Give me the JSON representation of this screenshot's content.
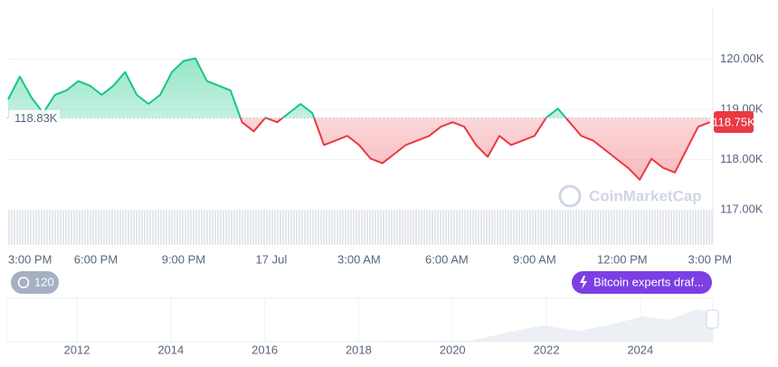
{
  "chart_data": {
    "type": "line",
    "x": [
      0,
      0.4,
      0.8,
      1.2,
      1.6,
      2,
      2.4,
      2.8,
      3.2,
      3.6,
      4,
      4.4,
      4.8,
      5.2,
      5.6,
      6,
      6.4,
      6.8,
      7.2,
      7.6,
      8,
      8.4,
      8.8,
      9.2,
      9.6,
      10,
      10.4,
      10.8,
      11.2,
      11.6,
      12,
      12.4,
      12.8,
      13.2,
      13.6,
      14,
      14.4,
      14.8,
      15.2,
      15.6,
      16,
      16.4,
      16.8,
      17.2,
      17.6,
      18,
      18.4,
      18.8,
      19.2,
      19.6,
      20,
      20.4,
      20.8,
      21.2,
      21.6,
      22,
      22.4,
      22.8,
      23.2,
      23.6,
      24
    ],
    "values": [
      119200,
      119655,
      119236,
      118927,
      119291,
      119382,
      119564,
      119473,
      119291,
      119473,
      119745,
      119291,
      119109,
      119291,
      119745,
      119964,
      120018,
      119564,
      119473,
      119382,
      118745,
      118564,
      118836,
      118745,
      118927,
      119109,
      118927,
      118291,
      118382,
      118473,
      118291,
      118018,
      117927,
      118109,
      118291,
      118382,
      118473,
      118655,
      118745,
      118655,
      118291,
      118055,
      118473,
      118291,
      118382,
      118473,
      118836,
      119018,
      118745,
      118473,
      118382,
      118200,
      118018,
      117836,
      117600,
      118018,
      117836,
      117745,
      118200,
      118655,
      118745
    ],
    "color_up": "#16c784",
    "color_down": "#ea3943",
    "xlim": [
      0,
      24.1
    ],
    "xticks": [
      {
        "value": 0,
        "label": "3:00 PM"
      },
      {
        "value": 3,
        "label": "6:00 PM"
      },
      {
        "value": 6,
        "label": "9:00 PM"
      },
      {
        "value": 9,
        "label": "17 Jul"
      },
      {
        "value": 12,
        "label": "3:00 AM"
      },
      {
        "value": 15,
        "label": "6:00 AM"
      },
      {
        "value": 18,
        "label": "9:00 AM"
      },
      {
        "value": 21,
        "label": "12:00 PM"
      },
      {
        "value": 24,
        "label": "3:00 PM"
      }
    ],
    "ylim": [
      116300,
      121000
    ],
    "yticks": [
      {
        "value": 117000,
        "label": "117.00K"
      },
      {
        "value": 118000,
        "label": "118.00K"
      },
      {
        "value": 119000,
        "label": "119.00K"
      },
      {
        "value": 120000,
        "label": "120.00K"
      }
    ],
    "grid": true,
    "baseline": {
      "value": 118830,
      "label": "118.83K"
    },
    "last_price": {
      "value": 118750,
      "label": "118.75K"
    },
    "watermark": "CoinMarketCap"
  },
  "navigator": {
    "labels": [
      "2012",
      "2014",
      "2016",
      "2018",
      "2020",
      "2022",
      "2024"
    ]
  },
  "controls": {
    "history_count": 120,
    "news_button": "Bitcoin experts draf..."
  }
}
